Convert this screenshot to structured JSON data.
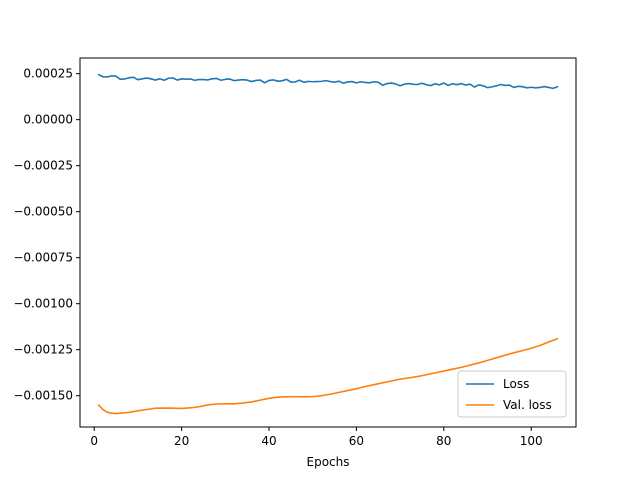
{
  "chart_data": {
    "type": "line",
    "title": "",
    "xlabel": "Epochs",
    "ylabel": "",
    "xlim": [
      -3.25,
      110.25
    ],
    "ylim": [
      -0.00167,
      0.000335
    ],
    "x_ticks": [
      0,
      20,
      40,
      60,
      80,
      100
    ],
    "x_tick_labels": [
      "0",
      "20",
      "40",
      "60",
      "80",
      "100"
    ],
    "y_ticks": [
      0.00025,
      0.0,
      -0.00025,
      -0.0005,
      -0.00075,
      -0.001,
      -0.00125,
      -0.0015
    ],
    "y_tick_labels": [
      "0.00025",
      "0.00000",
      "−0.00025",
      "−0.00050",
      "−0.00075",
      "−0.00100",
      "−0.00125",
      "−0.00150"
    ],
    "grid": false,
    "legend_position": "lower-right",
    "series": [
      {
        "name": "Loss",
        "color": "#1f77b4",
        "x": [
          1,
          2,
          3,
          4,
          5,
          6,
          7,
          8,
          9,
          10,
          11,
          12,
          13,
          14,
          15,
          16,
          17,
          18,
          19,
          20,
          21,
          22,
          23,
          24,
          25,
          26,
          27,
          28,
          29,
          30,
          31,
          32,
          33,
          34,
          35,
          36,
          37,
          38,
          39,
          40,
          41,
          42,
          43,
          44,
          45,
          46,
          47,
          48,
          49,
          50,
          51,
          52,
          53,
          54,
          55,
          56,
          57,
          58,
          59,
          60,
          61,
          62,
          63,
          64,
          65,
          66,
          67,
          68,
          69,
          70,
          71,
          72,
          73,
          74,
          75,
          76,
          77,
          78,
          79,
          80,
          81,
          82,
          83,
          84,
          85,
          86,
          87,
          88,
          89,
          90,
          91,
          92,
          93,
          94,
          95,
          96,
          97,
          98,
          99,
          100,
          101,
          102,
          103,
          104,
          105,
          106
        ],
        "values": [
          0.000245,
          0.000233,
          0.000232,
          0.000238,
          0.000236,
          0.000219,
          0.000221,
          0.000228,
          0.00023,
          0.000217,
          0.000222,
          0.000226,
          0.000222,
          0.000215,
          0.000222,
          0.000214,
          0.000225,
          0.000227,
          0.000215,
          0.000222,
          0.00022,
          0.000221,
          0.000214,
          0.000218,
          0.000218,
          0.000216,
          0.000222,
          0.000224,
          0.000214,
          0.000219,
          0.000221,
          0.000212,
          0.000215,
          0.000217,
          0.000215,
          0.000207,
          0.000213,
          0.000215,
          0.0002,
          0.000213,
          0.000216,
          0.000209,
          0.000211,
          0.000219,
          0.000204,
          0.000205,
          0.000214,
          0.000203,
          0.000208,
          0.000206,
          0.000207,
          0.000208,
          0.000212,
          0.000207,
          0.000204,
          0.000209,
          0.000198,
          0.000205,
          0.000207,
          0.0002,
          0.000206,
          0.000202,
          0.0002,
          0.000206,
          0.000203,
          0.000187,
          0.000196,
          0.000199,
          0.000194,
          0.000184,
          0.000193,
          0.000196,
          0.000192,
          0.000191,
          0.000198,
          0.00019,
          0.000185,
          0.000195,
          0.000189,
          0.000199,
          0.000186,
          0.000195,
          0.00019,
          0.000196,
          0.000188,
          0.000193,
          0.000177,
          0.000189,
          0.000184,
          0.000174,
          0.000178,
          0.000183,
          0.000191,
          0.000186,
          0.000188,
          0.000175,
          0.000181,
          0.000179,
          0.000173,
          0.000176,
          0.000173,
          0.000175,
          0.00018,
          0.000175,
          0.00017,
          0.000179
        ]
      },
      {
        "name": "Val. loss",
        "color": "#ff7f0e",
        "x": [
          1,
          2,
          3,
          4,
          5,
          6,
          8,
          10,
          12,
          14,
          16,
          18,
          20,
          22,
          24,
          26,
          28,
          30,
          32,
          34,
          36,
          38,
          40,
          42,
          44,
          46,
          48,
          50,
          52,
          54,
          56,
          58,
          60,
          62,
          64,
          66,
          68,
          70,
          72,
          74,
          76,
          78,
          80,
          82,
          84,
          86,
          88,
          90,
          92,
          94,
          96,
          98,
          100,
          102,
          104,
          106
        ],
        "values": [
          -0.00155,
          -0.001575,
          -0.00159,
          -0.001595,
          -0.001597,
          -0.001595,
          -0.00159,
          -0.001582,
          -0.001575,
          -0.001568,
          -0.001567,
          -0.001568,
          -0.001569,
          -0.001566,
          -0.00156,
          -0.00155,
          -0.001545,
          -0.001544,
          -0.001544,
          -0.00154,
          -0.001534,
          -0.001524,
          -0.001514,
          -0.001508,
          -0.001506,
          -0.001505,
          -0.001506,
          -0.001505,
          -0.0015,
          -0.001492,
          -0.001482,
          -0.001472,
          -0.001462,
          -0.00145,
          -0.00144,
          -0.00143,
          -0.00142,
          -0.00141,
          -0.001403,
          -0.001396,
          -0.001386,
          -0.001376,
          -0.001366,
          -0.001356,
          -0.001346,
          -0.001334,
          -0.001322,
          -0.001308,
          -0.001294,
          -0.00128,
          -0.001267,
          -0.001255,
          -0.001242,
          -0.001227,
          -0.001208,
          -0.00119
        ]
      }
    ]
  }
}
